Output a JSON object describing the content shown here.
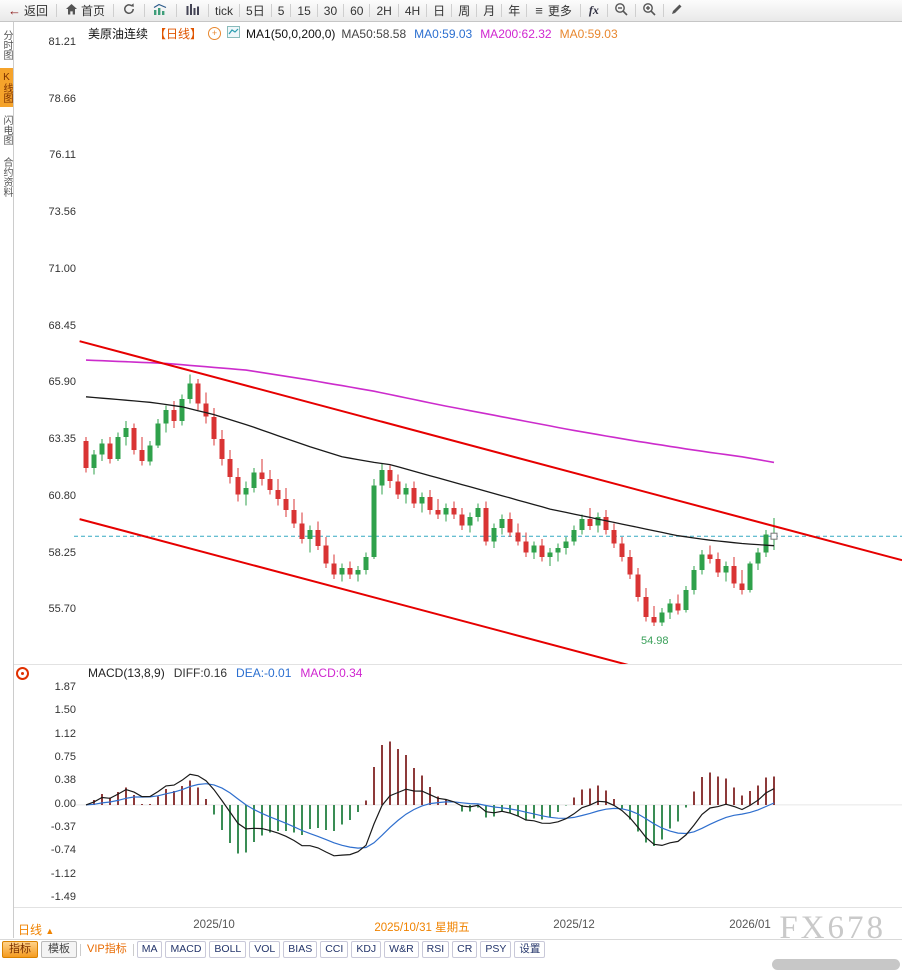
{
  "toolbar": {
    "back_label": "返回",
    "home_label": "首页",
    "periods": [
      "tick",
      "5日",
      "5",
      "15",
      "30",
      "60",
      "2H",
      "4H",
      "日",
      "周",
      "月",
      "年"
    ],
    "more_label": "更多",
    "fx_label": "fx"
  },
  "sidebar": {
    "items": [
      {
        "label": "分时图",
        "active": false
      },
      {
        "label": "K线图",
        "active": true
      },
      {
        "label": "闪电图",
        "active": false
      },
      {
        "label": "合约资料",
        "active": false
      }
    ]
  },
  "chart_header": {
    "symbol": "美原油连续",
    "period_tag": "【日线】",
    "ma_formula": "MA1(50,0,200,0)",
    "ma_values": [
      {
        "text": "MA50:58.58",
        "color": "#444444"
      },
      {
        "text": "MA0:59.03",
        "color": "#2b6fd0"
      },
      {
        "text": "MA200:62.32",
        "color": "#d026d0"
      },
      {
        "text": "MA0:59.03",
        "color": "#e8872e"
      }
    ]
  },
  "macd_header": {
    "formula": "MACD(13,8,9)",
    "values": [
      {
        "text": "DIFF:0.16",
        "color": "#333333"
      },
      {
        "text": "DEA:-0.01",
        "color": "#2b6fd0"
      },
      {
        "text": "MACD:0.34",
        "color": "#d026d0"
      }
    ]
  },
  "footer": {
    "timeframe_label": "日线",
    "timeframe_arrow": "▲",
    "tabs": [
      {
        "label": "指标",
        "style": "active"
      },
      {
        "label": "模板",
        "style": "plain"
      },
      {
        "label": "VIP指标",
        "style": "vip"
      },
      {
        "label": "MA",
        "style": "ind"
      },
      {
        "label": "MACD",
        "style": "ind"
      },
      {
        "label": "BOLL",
        "style": "ind"
      },
      {
        "label": "VOL",
        "style": "ind"
      },
      {
        "label": "BIAS",
        "style": "ind"
      },
      {
        "label": "CCI",
        "style": "ind"
      },
      {
        "label": "KDJ",
        "style": "ind"
      },
      {
        "label": "W&R",
        "style": "ind"
      },
      {
        "label": "RSI",
        "style": "ind"
      },
      {
        "label": "CR",
        "style": "ind"
      },
      {
        "label": "PSY",
        "style": "ind"
      },
      {
        "label": "设置",
        "style": "ind"
      }
    ],
    "watermark": "FX678"
  },
  "colors": {
    "up": "#2fa14b",
    "down": "#d93434",
    "ma50": "#1a1a1a",
    "ma200": "#cc2ccc",
    "channel": "#e60000",
    "current_line": "#35a9c2",
    "macd_pos": "#8d3a3a",
    "macd_neg": "#3a8d55",
    "diff_line": "#1a1a1a",
    "dea_line": "#2f6fce",
    "low_label": "#3aa05a",
    "accent_orange": "#f08300"
  },
  "chart_data": {
    "type": "candlestick",
    "title": "美原油连续 日线",
    "price_axis_labels": [
      "81.21",
      "78.66",
      "76.11",
      "73.56",
      "71.00",
      "68.45",
      "65.90",
      "63.35",
      "60.80",
      "58.25",
      "55.70"
    ],
    "macd_axis_labels": [
      "1.87",
      "1.50",
      "1.12",
      "0.75",
      "0.38",
      "0.00",
      "-0.37",
      "-0.74",
      "-1.12",
      "-1.49"
    ],
    "x_ticks": [
      {
        "i": 16,
        "label": "2025/10",
        "highlight": false
      },
      {
        "i": 42,
        "label": "2025/10/31 星期五",
        "highlight": true
      },
      {
        "i": 61,
        "label": "2025/12",
        "highlight": false
      },
      {
        "i": 83,
        "label": "2026/01",
        "highlight": false
      }
    ],
    "current_price": 59.03,
    "low_label": {
      "index": 71,
      "text": "54.98",
      "price": 54.98
    },
    "candles": [
      [
        63.3,
        63.5,
        61.9,
        62.1
      ],
      [
        62.1,
        62.9,
        61.8,
        62.7
      ],
      [
        62.7,
        63.4,
        62.4,
        63.2
      ],
      [
        63.2,
        63.5,
        62.3,
        62.5
      ],
      [
        62.5,
        63.7,
        62.4,
        63.5
      ],
      [
        63.5,
        64.2,
        63.1,
        63.9
      ],
      [
        63.9,
        64.1,
        62.7,
        62.9
      ],
      [
        62.9,
        63.5,
        62.2,
        62.4
      ],
      [
        62.4,
        63.3,
        62.2,
        63.1
      ],
      [
        63.1,
        64.3,
        63.0,
        64.1
      ],
      [
        64.1,
        64.9,
        63.7,
        64.7
      ],
      [
        64.7,
        65.1,
        63.9,
        64.2
      ],
      [
        64.2,
        65.4,
        64.0,
        65.2
      ],
      [
        65.2,
        66.3,
        65.0,
        65.9
      ],
      [
        65.9,
        66.1,
        64.7,
        65.0
      ],
      [
        65.0,
        65.5,
        64.1,
        64.4
      ],
      [
        64.4,
        64.8,
        63.1,
        63.4
      ],
      [
        63.4,
        63.8,
        62.2,
        62.5
      ],
      [
        62.5,
        62.9,
        61.4,
        61.7
      ],
      [
        61.7,
        62.1,
        60.6,
        60.9
      ],
      [
        60.9,
        61.5,
        60.4,
        61.2
      ],
      [
        61.2,
        62.1,
        61.0,
        61.9
      ],
      [
        61.9,
        62.5,
        61.3,
        61.6
      ],
      [
        61.6,
        62.0,
        60.9,
        61.1
      ],
      [
        61.1,
        61.6,
        60.4,
        60.7
      ],
      [
        60.7,
        61.2,
        59.9,
        60.2
      ],
      [
        60.2,
        60.7,
        59.4,
        59.6
      ],
      [
        59.6,
        60.1,
        58.7,
        58.9
      ],
      [
        58.9,
        59.5,
        58.3,
        59.3
      ],
      [
        59.3,
        59.7,
        58.4,
        58.6
      ],
      [
        58.6,
        59.0,
        57.6,
        57.8
      ],
      [
        57.8,
        58.2,
        57.1,
        57.3
      ],
      [
        57.3,
        57.8,
        57.0,
        57.6
      ],
      [
        57.6,
        57.9,
        57.1,
        57.3
      ],
      [
        57.3,
        57.7,
        57.0,
        57.5
      ],
      [
        57.5,
        58.3,
        57.3,
        58.1
      ],
      [
        58.1,
        61.6,
        58.0,
        61.3
      ],
      [
        61.3,
        62.3,
        60.9,
        62.0
      ],
      [
        62.0,
        62.2,
        61.2,
        61.5
      ],
      [
        61.5,
        61.8,
        60.7,
        60.9
      ],
      [
        60.9,
        61.4,
        60.5,
        61.2
      ],
      [
        61.2,
        61.5,
        60.3,
        60.5
      ],
      [
        60.5,
        61.0,
        60.1,
        60.8
      ],
      [
        60.8,
        61.1,
        60.0,
        60.2
      ],
      [
        60.2,
        60.7,
        59.8,
        60.0
      ],
      [
        60.0,
        60.5,
        59.7,
        60.3
      ],
      [
        60.3,
        60.6,
        59.8,
        60.0
      ],
      [
        60.0,
        60.3,
        59.3,
        59.5
      ],
      [
        59.5,
        60.1,
        59.2,
        59.9
      ],
      [
        59.9,
        60.5,
        59.7,
        60.3
      ],
      [
        60.3,
        60.6,
        58.6,
        58.8
      ],
      [
        58.8,
        59.6,
        58.5,
        59.4
      ],
      [
        59.4,
        60.0,
        59.1,
        59.8
      ],
      [
        59.8,
        60.1,
        59.0,
        59.2
      ],
      [
        59.2,
        59.6,
        58.6,
        58.8
      ],
      [
        58.8,
        59.2,
        58.1,
        58.3
      ],
      [
        58.3,
        58.8,
        58.0,
        58.6
      ],
      [
        58.6,
        58.9,
        57.9,
        58.1
      ],
      [
        58.1,
        58.5,
        57.7,
        58.3
      ],
      [
        58.3,
        58.7,
        57.9,
        58.5
      ],
      [
        58.5,
        59.0,
        58.2,
        58.8
      ],
      [
        58.8,
        59.5,
        58.6,
        59.3
      ],
      [
        59.3,
        60.0,
        59.1,
        59.8
      ],
      [
        59.8,
        60.3,
        59.3,
        59.5
      ],
      [
        59.5,
        60.1,
        59.2,
        59.9
      ],
      [
        59.9,
        60.2,
        59.1,
        59.3
      ],
      [
        59.3,
        59.6,
        58.5,
        58.7
      ],
      [
        58.7,
        59.0,
        57.9,
        58.1
      ],
      [
        58.1,
        58.4,
        57.1,
        57.3
      ],
      [
        57.3,
        57.6,
        56.1,
        56.3
      ],
      [
        56.3,
        56.7,
        55.2,
        55.4
      ],
      [
        55.4,
        55.9,
        54.98,
        55.15
      ],
      [
        55.15,
        55.8,
        55.0,
        55.6
      ],
      [
        55.6,
        56.2,
        55.3,
        56.0
      ],
      [
        56.0,
        56.4,
        55.5,
        55.7
      ],
      [
        55.7,
        56.8,
        55.6,
        56.6
      ],
      [
        56.6,
        57.7,
        56.4,
        57.5
      ],
      [
        57.5,
        58.4,
        57.3,
        58.2
      ],
      [
        58.2,
        58.6,
        57.8,
        58.0
      ],
      [
        58.0,
        58.3,
        57.2,
        57.4
      ],
      [
        57.4,
        57.9,
        57.0,
        57.7
      ],
      [
        57.7,
        58.1,
        56.7,
        56.9
      ],
      [
        56.9,
        57.5,
        56.4,
        56.6
      ],
      [
        56.6,
        57.9,
        56.5,
        57.8
      ],
      [
        57.8,
        58.5,
        57.5,
        58.3
      ],
      [
        58.3,
        59.3,
        58.1,
        59.1
      ],
      [
        58.9,
        59.85,
        58.4,
        59.03
      ]
    ],
    "ma50_points": [
      [
        0,
        65.3
      ],
      [
        8,
        65.05
      ],
      [
        12,
        64.85
      ],
      [
        16,
        64.5
      ],
      [
        20,
        64.05
      ],
      [
        24,
        63.55
      ],
      [
        28,
        63.05
      ],
      [
        32,
        62.6
      ],
      [
        36,
        62.35
      ],
      [
        38,
        62.25
      ],
      [
        42,
        61.85
      ],
      [
        46,
        61.45
      ],
      [
        50,
        61.05
      ],
      [
        54,
        60.65
      ],
      [
        58,
        60.25
      ],
      [
        62,
        59.95
      ],
      [
        66,
        59.65
      ],
      [
        70,
        59.35
      ],
      [
        74,
        59.05
      ],
      [
        78,
        58.85
      ],
      [
        82,
        58.7
      ],
      [
        86,
        58.6
      ]
    ],
    "ma200_points": [
      [
        0,
        66.95
      ],
      [
        10,
        66.8
      ],
      [
        20,
        66.5
      ],
      [
        28,
        66.05
      ],
      [
        36,
        65.55
      ],
      [
        44,
        64.95
      ],
      [
        52,
        64.4
      ],
      [
        60,
        63.85
      ],
      [
        68,
        63.35
      ],
      [
        76,
        62.9
      ],
      [
        82,
        62.6
      ],
      [
        86,
        62.35
      ]
    ],
    "channel_upper": {
      "i1": -0.8,
      "p1": 67.8,
      "i2": 102,
      "p2": 57.95
    },
    "channel_lower": {
      "i1": -0.8,
      "p1": 59.8,
      "i2": 69.2,
      "p2": 53.1
    },
    "price_axis_range": [
      54.0,
      81.8
    ],
    "macd_axis_range": [
      -1.49,
      1.87
    ],
    "macd": {
      "short": 8,
      "long": 13,
      "signal": 9
    }
  }
}
